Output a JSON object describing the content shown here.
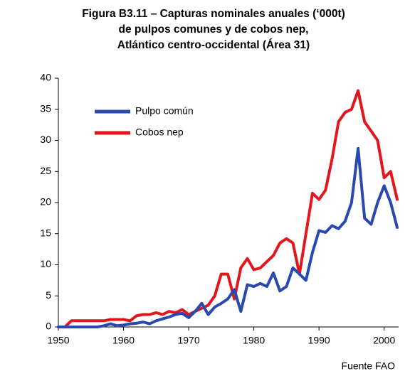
{
  "chart_data": {
    "type": "line",
    "title": [
      "Figura B3.11 – Capturas nominales anuales (‘000t)",
      "de pulpos comunes  y  de cobos nep,",
      "Atlántico centro-occidental (Área 31)"
    ],
    "source": "Fuente FAO",
    "x": [
      1950,
      1951,
      1952,
      1953,
      1954,
      1955,
      1956,
      1957,
      1958,
      1959,
      1960,
      1961,
      1962,
      1963,
      1964,
      1965,
      1966,
      1967,
      1968,
      1969,
      1970,
      1971,
      1972,
      1973,
      1974,
      1975,
      1976,
      1977,
      1978,
      1979,
      1980,
      1981,
      1982,
      1983,
      1984,
      1985,
      1986,
      1987,
      1988,
      1989,
      1990,
      1991,
      1992,
      1993,
      1994,
      1995,
      1996,
      1997,
      1998,
      1999,
      2000,
      2001,
      2002
    ],
    "series": [
      {
        "name": "Pulpo común",
        "color": "#2a49b0",
        "values": [
          0,
          0,
          0,
          0,
          0,
          0,
          0,
          0.2,
          0.5,
          0.2,
          0.3,
          0.5,
          0.6,
          0.8,
          0.5,
          1.0,
          1.3,
          1.6,
          2.0,
          2.2,
          1.5,
          2.5,
          3.8,
          2.0,
          3.2,
          3.8,
          4.5,
          6.0,
          2.5,
          6.8,
          6.5,
          7.0,
          6.5,
          8.7,
          5.8,
          6.5,
          9.5,
          8.5,
          7.5,
          12,
          15.5,
          15.2,
          16.3,
          15.8,
          17,
          20,
          28.7,
          17.5,
          16.5,
          20,
          22.7,
          20,
          16
        ]
      },
      {
        "name": "Cobos nep",
        "color": "#e3161e",
        "values": [
          0,
          0,
          1.0,
          1.0,
          1.0,
          1.0,
          1.0,
          1.0,
          1.2,
          1.2,
          1.2,
          1.0,
          1.8,
          2.0,
          2.0,
          2.3,
          2.0,
          2.5,
          2.3,
          2.8,
          2.0,
          2.5,
          3.0,
          3.5,
          5.0,
          8.5,
          8.5,
          4.5,
          9.5,
          11,
          9.2,
          9.5,
          10.5,
          11.5,
          13.5,
          14.2,
          13.5,
          8.5,
          15,
          21.5,
          20.5,
          22,
          27,
          33,
          34.5,
          35,
          38,
          33,
          31.5,
          30,
          24,
          25,
          20.5
        ]
      }
    ],
    "xlim": [
      1950,
      2002
    ],
    "xticks": [
      1950,
      1960,
      1970,
      1980,
      1990,
      2000
    ],
    "ylim": [
      0,
      40
    ],
    "yticks": [
      0,
      5,
      10,
      15,
      20,
      25,
      30,
      35,
      40
    ],
    "grid": false,
    "legend": "upper left"
  }
}
